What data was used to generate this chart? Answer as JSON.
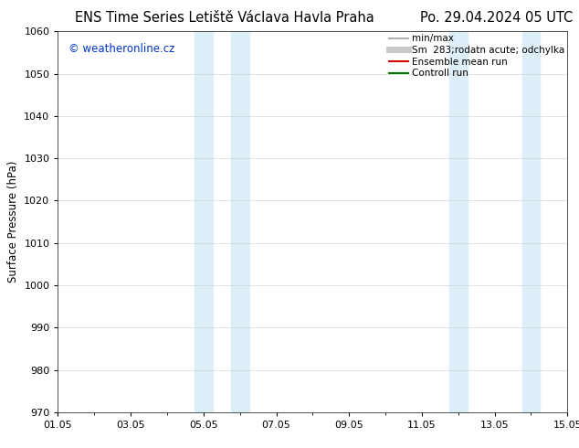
{
  "title_left": "ENS Time Series Letiště Václava Havla Praha",
  "title_right": "Po. 29.04.2024 05 UTC",
  "ylabel": "Surface Pressure (hPa)",
  "ylim": [
    970,
    1060
  ],
  "yticks": [
    970,
    980,
    990,
    1000,
    1010,
    1020,
    1030,
    1040,
    1050,
    1060
  ],
  "xlim": [
    0,
    14
  ],
  "xtick_positions": [
    0,
    2,
    4,
    6,
    8,
    10,
    12,
    14
  ],
  "xtick_labels": [
    "01.05",
    "03.05",
    "05.05",
    "07.05",
    "09.05",
    "11.05",
    "13.05",
    "15.05"
  ],
  "shade_bands": [
    {
      "xmin": 3.75,
      "xmax": 4.25
    },
    {
      "xmin": 4.75,
      "xmax": 5.25
    },
    {
      "xmin": 10.75,
      "xmax": 11.25
    },
    {
      "xmin": 12.75,
      "xmax": 13.25
    }
  ],
  "shade_color": "#ddeef8",
  "background_color": "#ffffff",
  "watermark": "© weatheronline.cz",
  "watermark_color": "#0033cc",
  "legend_items": [
    {
      "label": "min/max",
      "color": "#b0b0b0",
      "lw": 1.5
    },
    {
      "label": "Sm  283;rodatn acute; odchylka",
      "color": "#c8c8c8",
      "lw": 5
    },
    {
      "label": "Ensemble mean run",
      "color": "#cc0000",
      "lw": 1.5
    },
    {
      "label": "Controll run",
      "color": "#007700",
      "lw": 1.5
    }
  ],
  "grid_color": "#cccccc",
  "title_fontsize": 10.5,
  "axis_fontsize": 8.5,
  "tick_fontsize": 8,
  "watermark_fontsize": 8.5,
  "legend_fontsize": 7.5
}
